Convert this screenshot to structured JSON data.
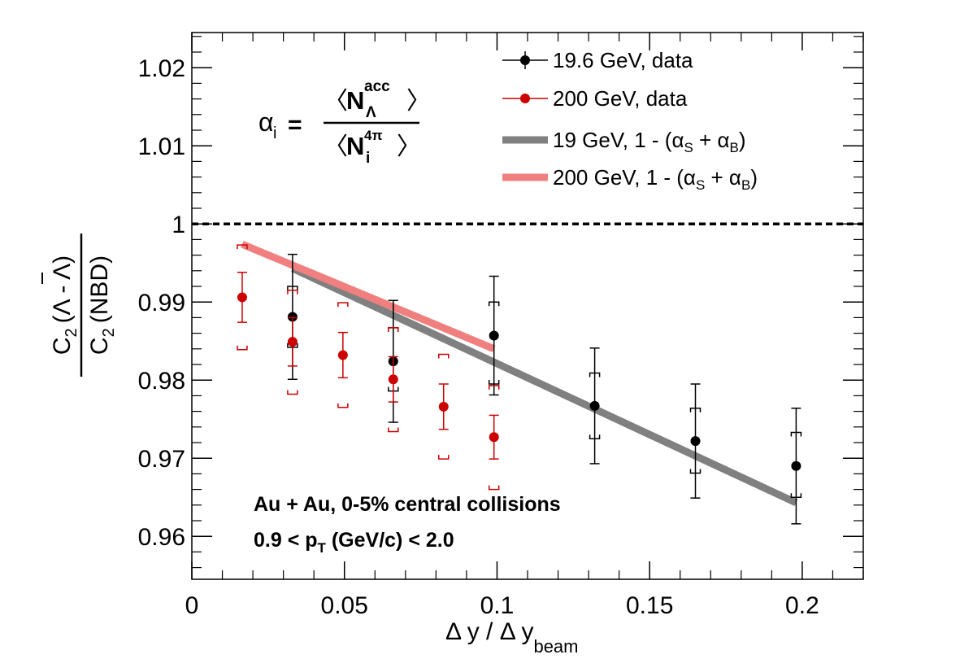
{
  "chart_data": {
    "type": "scatter",
    "xlabel": {
      "main": "Δ y / Δ y",
      "sub": "beam"
    },
    "ylabel": {
      "num_main": "C",
      "num_sub": "2",
      "num_rest": "(Λ - Λ)",
      "den_main": "C",
      "den_sub": "2",
      "den_rest": "(NBD)"
    },
    "xlim": [
      0,
      0.22
    ],
    "ylim": [
      0.9545,
      1.0245
    ],
    "grid": false,
    "legend_position": "top-right",
    "x_ticks": [
      {
        "value": 0,
        "label": "0"
      },
      {
        "value": 0.05,
        "label": "0.05"
      },
      {
        "value": 0.1,
        "label": "0.1"
      },
      {
        "value": 0.15,
        "label": "0.15"
      },
      {
        "value": 0.2,
        "label": "0.2"
      }
    ],
    "y_ticks": [
      {
        "value": 0.96,
        "label": "0.96"
      },
      {
        "value": 0.97,
        "label": "0.97"
      },
      {
        "value": 0.98,
        "label": "0.98"
      },
      {
        "value": 0.99,
        "label": "0.99"
      },
      {
        "value": 1.0,
        "label": "1"
      },
      {
        "value": 1.01,
        "label": "1.01"
      },
      {
        "value": 1.02,
        "label": "1.02"
      }
    ],
    "reference_line": {
      "y": 1.0,
      "style": "dashed"
    },
    "series": [
      {
        "name": "19.6 GeV, data",
        "kind": "points",
        "color": "#000000",
        "points": [
          {
            "x": 0.033,
            "y": 0.9881,
            "stat": 0.008,
            "sys_lo": 0.9842,
            "sys_hi": 0.992
          },
          {
            "x": 0.066,
            "y": 0.9824,
            "stat": 0.0078,
            "sys_lo": 0.9786,
            "sys_hi": 0.9867
          },
          {
            "x": 0.099,
            "y": 0.9857,
            "stat": 0.0076,
            "sys_lo": 0.9795,
            "sys_hi": 0.99
          },
          {
            "x": 0.132,
            "y": 0.9767,
            "stat": 0.0074,
            "sys_lo": 0.9725,
            "sys_hi": 0.9809
          },
          {
            "x": 0.165,
            "y": 0.9722,
            "stat": 0.0073,
            "sys_lo": 0.9681,
            "sys_hi": 0.9764
          },
          {
            "x": 0.198,
            "y": 0.969,
            "stat": 0.0074,
            "sys_lo": 0.965,
            "sys_hi": 0.9733
          }
        ]
      },
      {
        "name": "200 GeV, data",
        "kind": "points",
        "color": "#cc0000",
        "points": [
          {
            "x": 0.0165,
            "y": 0.9906,
            "stat": 0.0032,
            "sys_lo": 0.9839,
            "sys_hi": 0.9973
          },
          {
            "x": 0.033,
            "y": 0.9849,
            "stat": 0.0031,
            "sys_lo": 0.9782,
            "sys_hi": 0.9915
          },
          {
            "x": 0.0495,
            "y": 0.9832,
            "stat": 0.0029,
            "sys_lo": 0.9765,
            "sys_hi": 0.9899
          },
          {
            "x": 0.066,
            "y": 0.9801,
            "stat": 0.0029,
            "sys_lo": 0.9734,
            "sys_hi": 0.9867
          },
          {
            "x": 0.0825,
            "y": 0.9766,
            "stat": 0.0029,
            "sys_lo": 0.9699,
            "sys_hi": 0.9833
          },
          {
            "x": 0.099,
            "y": 0.9727,
            "stat": 0.0028,
            "sys_lo": 0.966,
            "sys_hi": 0.9793
          }
        ]
      },
      {
        "name": "19 GeV, 1 - (αS + αB)",
        "kind": "line",
        "color": "#808080",
        "points": [
          {
            "x": 0.033,
            "y": 0.9943
          },
          {
            "x": 0.198,
            "y": 0.9643
          }
        ]
      },
      {
        "name": "200 GeV, 1 - (αS + αB)",
        "kind": "line",
        "color": "#f08080",
        "points": [
          {
            "x": 0.0165,
            "y": 0.9974
          },
          {
            "x": 0.099,
            "y": 0.984
          }
        ]
      }
    ],
    "legend": [
      {
        "series": 0,
        "main": "19.6 GeV, data"
      },
      {
        "series": 1,
        "main": "200 GeV, data"
      },
      {
        "series": 2,
        "main": "19 GeV, 1 - (α",
        "sub1": "S",
        "mid": " + α",
        "sub2": "B",
        "end": ")"
      },
      {
        "series": 3,
        "main": "200 GeV, 1 - (α",
        "sub1": "S",
        "mid": " + α",
        "sub2": "B",
        "end": ")"
      }
    ],
    "formula": {
      "lhs": "α",
      "lhs_sub": "i",
      "equals": "=",
      "num_main": "N",
      "num_sup": "acc",
      "num_sub": "Λ",
      "den_main": "N",
      "den_sup": "4π",
      "den_sub": "i"
    },
    "annotations": {
      "line1": "Au + Au, 0-5% central collisions",
      "line2_pre": "0.9 < p",
      "line2_sub": "T",
      "line2_post": " (GeV/c) < 2.0"
    }
  }
}
